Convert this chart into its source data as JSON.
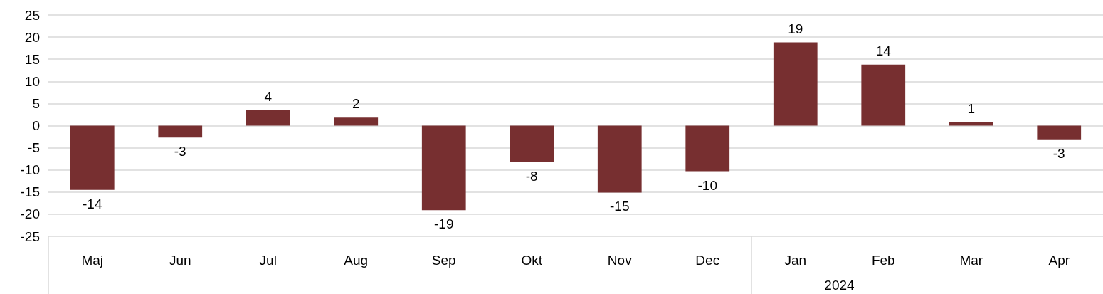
{
  "chart_data": {
    "type": "bar",
    "categories": [
      "Maj",
      "Jun",
      "Jul",
      "Aug",
      "Sep",
      "Okt",
      "Nov",
      "Dec",
      "Jan",
      "Feb",
      "Mar",
      "Apr"
    ],
    "values": [
      -14.5,
      -2.7,
      3.5,
      1.8,
      -19.1,
      -8.2,
      -15.1,
      -10.3,
      18.8,
      13.8,
      0.8,
      -3.1
    ],
    "value_labels": [
      "-14",
      "-3",
      "4",
      "2",
      "-19",
      "-8",
      "-15",
      "-10",
      "19",
      "14",
      "1",
      "-3"
    ],
    "color": "#772f30",
    "ylim": [
      -25,
      25
    ],
    "yticks": [
      -25,
      -20,
      -15,
      -10,
      -5,
      0,
      5,
      10,
      15,
      20,
      25
    ],
    "grid": "y",
    "annotations": [
      "2024"
    ]
  }
}
